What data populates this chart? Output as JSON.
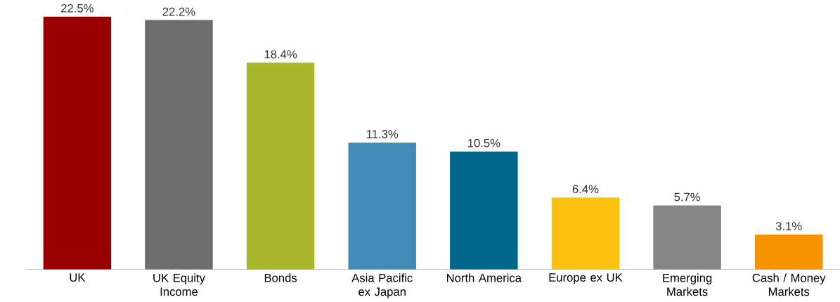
{
  "chart_data": {
    "type": "bar",
    "categories": [
      "UK",
      "UK Equity Income",
      "Bonds",
      "Asia Pacific ex Japan",
      "North America",
      "Europe ex UK",
      "Emerging Markets",
      "Cash / Money Markets"
    ],
    "values": [
      22.5,
      22.2,
      18.4,
      11.3,
      10.5,
      6.4,
      5.7,
      3.1
    ],
    "colors": [
      "#9b0000",
      "#6d6d6d",
      "#a8b82a",
      "#428bb7",
      "#00678a",
      "#fdc10f",
      "#858585",
      "#f59300"
    ],
    "value_labels": [
      "22.5%",
      "22.2%",
      "18.4%",
      "11.3%",
      "10.5%",
      "6.4%",
      "5.7%",
      "3.1%"
    ]
  }
}
